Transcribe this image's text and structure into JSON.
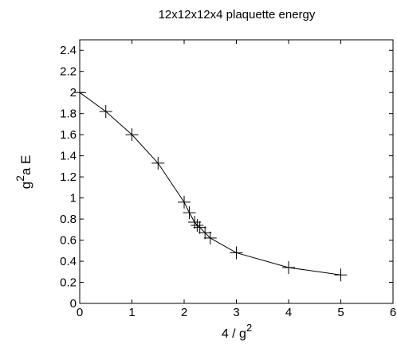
{
  "chart_data": {
    "type": "line",
    "title": "12x12x12x4 plaquette energy",
    "xlabel_base": "4 / g",
    "xlabel_sup": "2",
    "ylabel_pre": "g",
    "ylabel_sup": "2",
    "ylabel_post": "a E",
    "xlim": [
      0,
      6
    ],
    "ylim": [
      0,
      2.5
    ],
    "xticks": [
      "0",
      "1",
      "2",
      "3",
      "4",
      "5",
      "6"
    ],
    "xtick_values": [
      0,
      1,
      2,
      3,
      4,
      5,
      6
    ],
    "yticks": [
      "0",
      "0.2",
      "0.4",
      "0.6",
      "0.8",
      "1",
      "1.2",
      "1.4",
      "1.6",
      "1.8",
      "2",
      "2.2",
      "2.4"
    ],
    "ytick_values": [
      0,
      0.2,
      0.4,
      0.6,
      0.8,
      1.0,
      1.2,
      1.4,
      1.6,
      1.8,
      2.0,
      2.2,
      2.4
    ],
    "grid": false,
    "marker": "plus",
    "series": [
      {
        "x": [
          0,
          0.5,
          1.0,
          1.5,
          2.0,
          2.1,
          2.2,
          2.25,
          2.3,
          2.4,
          2.5,
          3.0,
          4.0,
          5.0
        ],
        "y": [
          2.0,
          1.82,
          1.6,
          1.33,
          0.96,
          0.86,
          0.77,
          0.74,
          0.72,
          0.67,
          0.62,
          0.48,
          0.34,
          0.27
        ],
        "color": "#000000"
      }
    ]
  }
}
